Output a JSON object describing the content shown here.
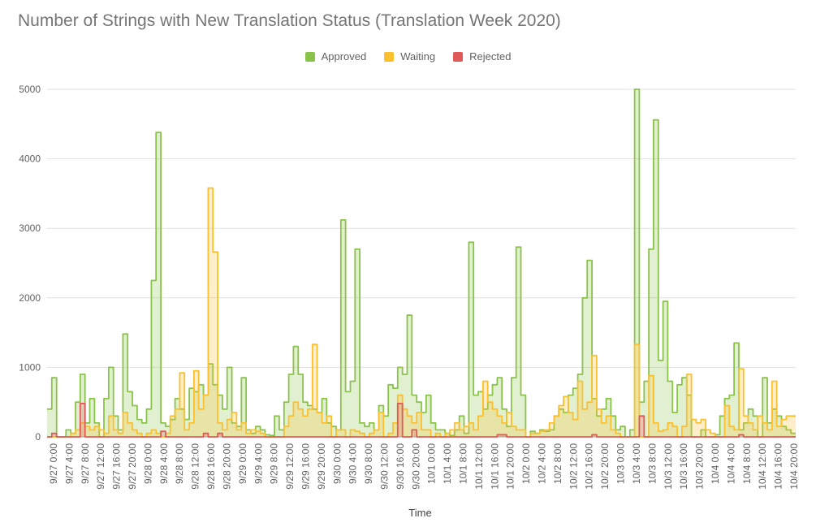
{
  "chart_data": {
    "type": "area",
    "title": "Number of Strings with New Translation Status (Translation Week 2020)",
    "xlabel": "Time",
    "ylabel": "",
    "ylim": [
      0,
      5000
    ],
    "yticks": [
      0,
      1000,
      2000,
      3000,
      4000,
      5000
    ],
    "grid": true,
    "legend_position": "top",
    "x_tick_labels": [
      "9/27 0:00",
      "9/27 4:00",
      "9/27 8:00",
      "9/27 12:00",
      "9/27 16:00",
      "9/27 20:00",
      "9/28 0:00",
      "9/28 4:00",
      "9/28 8:00",
      "9/28 12:00",
      "9/28 16:00",
      "9/28 20:00",
      "9/29 0:00",
      "9/29 4:00",
      "9/29 8:00",
      "9/29 12:00",
      "9/29 16:00",
      "9/29 20:00",
      "9/30 0:00",
      "9/30 4:00",
      "9/30 8:00",
      "9/30 12:00",
      "9/30 16:00",
      "9/30 20:00",
      "10/1 0:00",
      "10/1 4:00",
      "10/1 8:00",
      "10/1 12:00",
      "10/1 16:00",
      "10/1 20:00",
      "10/2 0:00",
      "10/2 4:00",
      "10/2 8:00",
      "10/2 12:00",
      "10/2 16:00",
      "10/2 20:00",
      "10/3 0:00",
      "10/3 4:00",
      "10/3 8:00",
      "10/3 12:00",
      "10/3 16:00",
      "10/3 20:00",
      "10/4 0:00",
      "10/4 4:00",
      "10/4 8:00",
      "10/4 12:00",
      "10/4 16:00",
      "10/4 20:00"
    ],
    "series": [
      {
        "name": "Approved",
        "color": "#8bc34a",
        "fill": "rgba(139,195,74,0.25)",
        "values": [
          400,
          850,
          0,
          0,
          100,
          50,
          500,
          900,
          200,
          550,
          200,
          0,
          550,
          1000,
          300,
          100,
          1480,
          650,
          450,
          250,
          200,
          400,
          2250,
          4380,
          200,
          150,
          250,
          550,
          400,
          250,
          700,
          650,
          750,
          600,
          1050,
          750,
          600,
          400,
          1000,
          200,
          150,
          850,
          100,
          50,
          150,
          100,
          30,
          20,
          300,
          100,
          500,
          900,
          1300,
          900,
          500,
          450,
          400,
          350,
          550,
          200,
          150,
          100,
          3120,
          650,
          800,
          2700,
          200,
          150,
          200,
          100,
          450,
          300,
          750,
          700,
          1000,
          900,
          1750,
          600,
          500,
          350,
          600,
          200,
          100,
          100,
          50,
          20,
          100,
          300,
          50,
          2800,
          600,
          650,
          400,
          600,
          750,
          850,
          400,
          150,
          850,
          2730,
          600,
          0,
          80,
          50,
          100,
          80,
          100,
          300,
          400,
          350,
          600,
          700,
          900,
          2000,
          2540,
          550,
          300,
          400,
          550,
          300,
          100,
          150,
          0,
          100,
          5000,
          500,
          800,
          2700,
          4560,
          1100,
          1950,
          800,
          350,
          750,
          850,
          600,
          0,
          0,
          100,
          0,
          0,
          30,
          300,
          550,
          600,
          1350,
          100,
          200,
          400,
          300,
          0,
          850,
          200,
          400,
          300,
          150,
          100,
          50
        ]
      },
      {
        "name": "Waiting",
        "color": "#fbc02d",
        "fill": "rgba(251,192,45,0.25)",
        "values": [
          0,
          0,
          0,
          0,
          0,
          50,
          100,
          200,
          150,
          100,
          150,
          100,
          50,
          300,
          100,
          50,
          350,
          200,
          100,
          50,
          0,
          50,
          100,
          50,
          0,
          50,
          300,
          400,
          920,
          100,
          200,
          950,
          400,
          600,
          3580,
          2660,
          200,
          100,
          250,
          350,
          100,
          200,
          50,
          100,
          80,
          50,
          0,
          0,
          0,
          0,
          150,
          300,
          500,
          400,
          300,
          400,
          1330,
          350,
          200,
          300,
          0,
          100,
          100,
          0,
          100,
          80,
          50,
          0,
          50,
          100,
          350,
          0,
          50,
          200,
          600,
          400,
          300,
          200,
          350,
          100,
          100,
          0,
          50,
          0,
          50,
          100,
          200,
          100,
          150,
          200,
          100,
          300,
          800,
          500,
          400,
          300,
          200,
          350,
          150,
          100,
          100,
          0,
          50,
          50,
          80,
          100,
          200,
          300,
          450,
          580,
          350,
          250,
          800,
          400,
          500,
          1170,
          400,
          200,
          300,
          100,
          50,
          0,
          0,
          0,
          1330,
          0,
          0,
          880,
          200,
          80,
          100,
          200,
          150,
          0,
          150,
          900,
          250,
          200,
          250,
          100,
          50,
          0,
          0,
          450,
          150,
          100,
          980,
          300,
          200,
          100,
          300,
          200,
          100,
          800,
          150,
          250,
          300,
          300
        ]
      },
      {
        "name": "Rejected",
        "color": "#e05a5a",
        "fill": "rgba(224,90,90,0.25)",
        "values": [
          0,
          50,
          0,
          0,
          0,
          0,
          0,
          480,
          0,
          0,
          0,
          0,
          0,
          0,
          0,
          0,
          0,
          0,
          0,
          0,
          0,
          0,
          0,
          0,
          80,
          0,
          0,
          0,
          0,
          0,
          0,
          0,
          0,
          50,
          0,
          0,
          50,
          0,
          0,
          0,
          0,
          0,
          0,
          0,
          0,
          0,
          0,
          0,
          0,
          0,
          0,
          0,
          0,
          0,
          0,
          0,
          0,
          0,
          0,
          0,
          0,
          0,
          0,
          0,
          0,
          0,
          0,
          0,
          0,
          0,
          0,
          0,
          0,
          0,
          480,
          0,
          0,
          100,
          0,
          0,
          0,
          0,
          0,
          0,
          0,
          0,
          0,
          0,
          0,
          0,
          0,
          0,
          0,
          0,
          0,
          30,
          30,
          0,
          0,
          0,
          0,
          0,
          0,
          0,
          0,
          0,
          0,
          0,
          0,
          0,
          0,
          0,
          0,
          0,
          0,
          30,
          0,
          0,
          0,
          0,
          0,
          0,
          0,
          0,
          0,
          300,
          0,
          0,
          0,
          0,
          0,
          0,
          0,
          0,
          0,
          0,
          0,
          0,
          0,
          0,
          0,
          0,
          0,
          0,
          0,
          0,
          30,
          0,
          0,
          0,
          0,
          0,
          0,
          0,
          0,
          0,
          0,
          0
        ]
      }
    ]
  }
}
